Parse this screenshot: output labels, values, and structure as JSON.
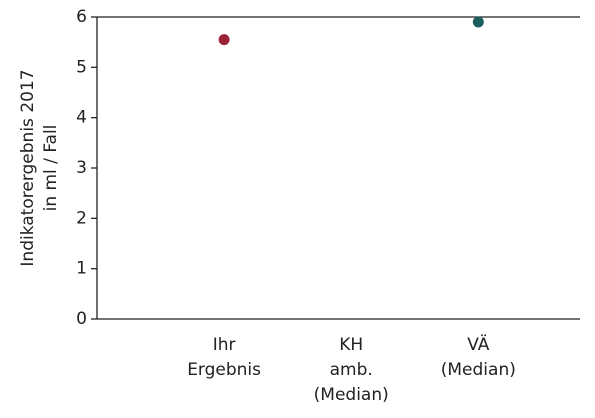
{
  "chart_data": {
    "type": "scatter",
    "ylabel": [
      "Indikatorergebnis 2017",
      "in ml / Fall"
    ],
    "categories": [
      "Ihr Ergebnis",
      "KH amb. (Median)",
      "VÄ (Median)"
    ],
    "values": [
      5.55,
      null,
      5.9
    ],
    "colors": [
      "#9b2335",
      null,
      "#1b5e5e"
    ],
    "ylim": [
      0,
      6
    ],
    "yticks": [
      0,
      1,
      2,
      3,
      4,
      5,
      6
    ]
  }
}
